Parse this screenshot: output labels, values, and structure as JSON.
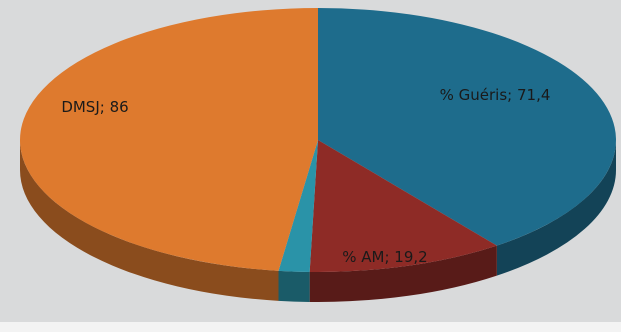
{
  "chart_data": {
    "type": "pie",
    "title": "",
    "slices": [
      {
        "label": "% Guéris",
        "value": 71.4,
        "display": "71,4",
        "color": "#1e6c8c"
      },
      {
        "label": "% AM",
        "value": 19.2,
        "display": "19,2",
        "color": "#8e2b26"
      },
      {
        "label": "",
        "value": 3.0,
        "display": "",
        "color": "#2a93a8"
      },
      {
        "label": "DMSJ",
        "value": 86,
        "display": "86",
        "color": "#de7a2e"
      }
    ],
    "legend": "none",
    "style": "3d"
  }
}
